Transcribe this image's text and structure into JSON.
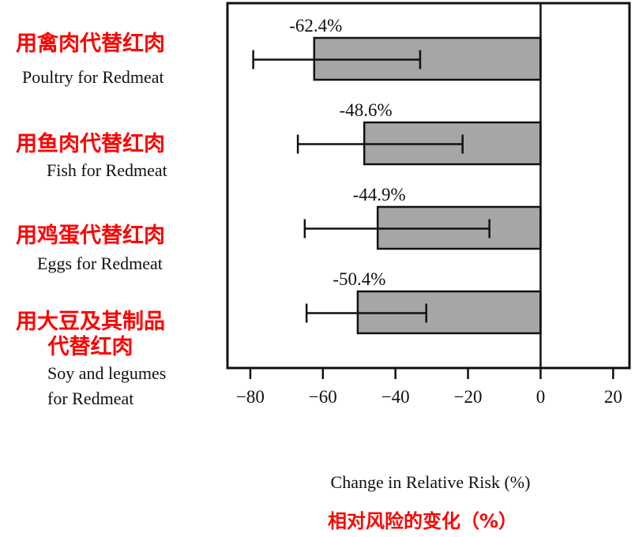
{
  "chart_data": {
    "type": "bar",
    "orientation": "horizontal",
    "categories": [
      {
        "label_cn": "用禽肉代替红肉",
        "label_en": [
          "Poultry for Redmeat"
        ]
      },
      {
        "label_cn": "用鱼肉代替红肉",
        "label_en": [
          "Fish for Redmeat"
        ]
      },
      {
        "label_cn": "用鸡蛋代替红肉",
        "label_en": [
          "Eggs for Redmeat"
        ]
      },
      {
        "label_cn": "用大豆及其制品\n代替红肉",
        "label_en": [
          "Soy and legumes",
          "for Redmeat"
        ]
      }
    ],
    "values": [
      -62.4,
      -48.6,
      -44.9,
      -50.4
    ],
    "data_labels": [
      "-62.4%",
      "-48.6%",
      "-44.9%",
      "-50.4%"
    ],
    "error_low": [
      -79.2,
      -66.9,
      -65.0,
      -64.5
    ],
    "error_high": [
      -33.2,
      -21.5,
      -14.1,
      -31.5
    ],
    "xlabel": "Change in Relative Risk (%)",
    "xlabel_cn": "相对风险的变化（%）",
    "xlim": [
      -86.3,
      24.5
    ],
    "xticks": [
      -80,
      -60,
      -40,
      -20,
      0,
      20
    ],
    "xtick_labels": [
      "−80",
      "−60",
      "−40",
      "−20",
      "0",
      "20"
    ],
    "grid": false,
    "bar_color": "#a6a6a6",
    "label_cn_color": "#ff0000"
  }
}
